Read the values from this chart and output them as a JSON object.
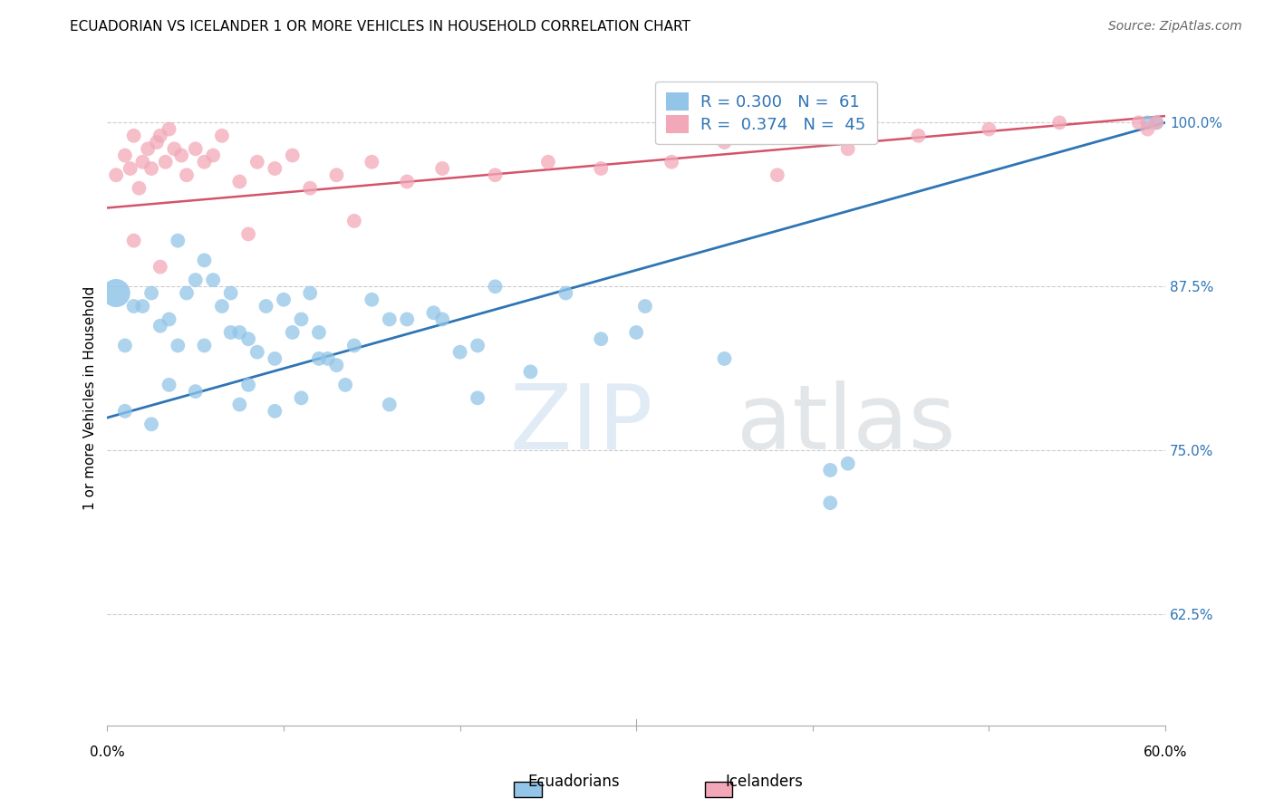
{
  "title": "ECUADORIAN VS ICELANDER 1 OR MORE VEHICLES IN HOUSEHOLD CORRELATION CHART",
  "source": "Source: ZipAtlas.com",
  "ylabel": "1 or more Vehicles in Household",
  "yticks": [
    62.5,
    75.0,
    87.5,
    100.0
  ],
  "ytick_labels": [
    "62.5%",
    "75.0%",
    "87.5%",
    "100.0%"
  ],
  "xmin": 0.0,
  "xmax": 60.0,
  "ymin": 54.0,
  "ymax": 104.0,
  "legend_blue_r": "R = 0.300",
  "legend_blue_n": "N =  61",
  "legend_pink_r": "R =  0.374",
  "legend_pink_n": "N =  45",
  "legend_label_blue": "Ecuadorians",
  "legend_label_pink": "Icelanders",
  "blue_color": "#92C5E8",
  "pink_color": "#F2A8B8",
  "blue_line_color": "#2E75B6",
  "pink_line_color": "#D4546A",
  "blue_trendline_x": [
    0.0,
    60.0
  ],
  "blue_trendline_y": [
    77.5,
    100.0
  ],
  "pink_trendline_x": [
    0.0,
    60.0
  ],
  "pink_trendline_y": [
    93.5,
    100.5
  ],
  "blue_scatter_x": [
    1.0,
    1.5,
    2.0,
    2.5,
    3.0,
    3.5,
    4.0,
    4.0,
    4.5,
    5.0,
    5.5,
    5.5,
    6.0,
    6.5,
    7.0,
    7.0,
    7.5,
    8.0,
    8.5,
    9.0,
    9.5,
    10.0,
    10.5,
    11.0,
    11.5,
    12.0,
    12.0,
    12.5,
    13.0,
    14.0,
    15.0,
    16.0,
    17.0,
    18.5,
    19.0,
    20.0,
    21.0,
    22.0,
    24.0,
    26.0,
    28.0,
    30.0,
    30.5,
    35.0,
    41.0,
    42.0,
    59.0,
    1.0,
    2.5,
    3.5,
    5.0,
    7.5,
    8.0,
    9.5,
    11.0,
    13.5,
    16.0,
    21.0,
    41.0,
    59.5
  ],
  "blue_scatter_y": [
    83.0,
    86.0,
    86.0,
    87.0,
    84.5,
    85.0,
    83.0,
    91.0,
    87.0,
    88.0,
    89.5,
    83.0,
    88.0,
    86.0,
    87.0,
    84.0,
    84.0,
    83.5,
    82.5,
    86.0,
    82.0,
    86.5,
    84.0,
    85.0,
    87.0,
    82.0,
    84.0,
    82.0,
    81.5,
    83.0,
    86.5,
    85.0,
    85.0,
    85.5,
    85.0,
    82.5,
    83.0,
    87.5,
    81.0,
    87.0,
    83.5,
    84.0,
    86.0,
    82.0,
    73.5,
    74.0,
    100.0,
    78.0,
    77.0,
    80.0,
    79.5,
    78.5,
    80.0,
    78.0,
    79.0,
    80.0,
    78.5,
    79.0,
    71.0,
    100.0
  ],
  "pink_scatter_x": [
    0.5,
    1.0,
    1.3,
    1.5,
    1.8,
    2.0,
    2.3,
    2.5,
    2.8,
    3.0,
    3.3,
    3.5,
    3.8,
    4.2,
    4.5,
    5.0,
    5.5,
    6.0,
    6.5,
    7.5,
    8.5,
    9.5,
    10.5,
    11.5,
    13.0,
    15.0,
    17.0,
    19.0,
    22.0,
    25.0,
    28.0,
    32.0,
    35.0,
    38.0,
    42.0,
    46.0,
    50.0,
    54.0,
    58.5,
    59.0,
    1.5,
    3.0,
    8.0,
    14.0,
    59.5
  ],
  "pink_scatter_y": [
    96.0,
    97.5,
    96.5,
    99.0,
    95.0,
    97.0,
    98.0,
    96.5,
    98.5,
    99.0,
    97.0,
    99.5,
    98.0,
    97.5,
    96.0,
    98.0,
    97.0,
    97.5,
    99.0,
    95.5,
    97.0,
    96.5,
    97.5,
    95.0,
    96.0,
    97.0,
    95.5,
    96.5,
    96.0,
    97.0,
    96.5,
    97.0,
    98.5,
    96.0,
    98.0,
    99.0,
    99.5,
    100.0,
    100.0,
    99.5,
    91.0,
    89.0,
    91.5,
    92.5,
    100.0
  ],
  "large_blue_dot_x": 0.5,
  "large_blue_dot_y": 87.0
}
